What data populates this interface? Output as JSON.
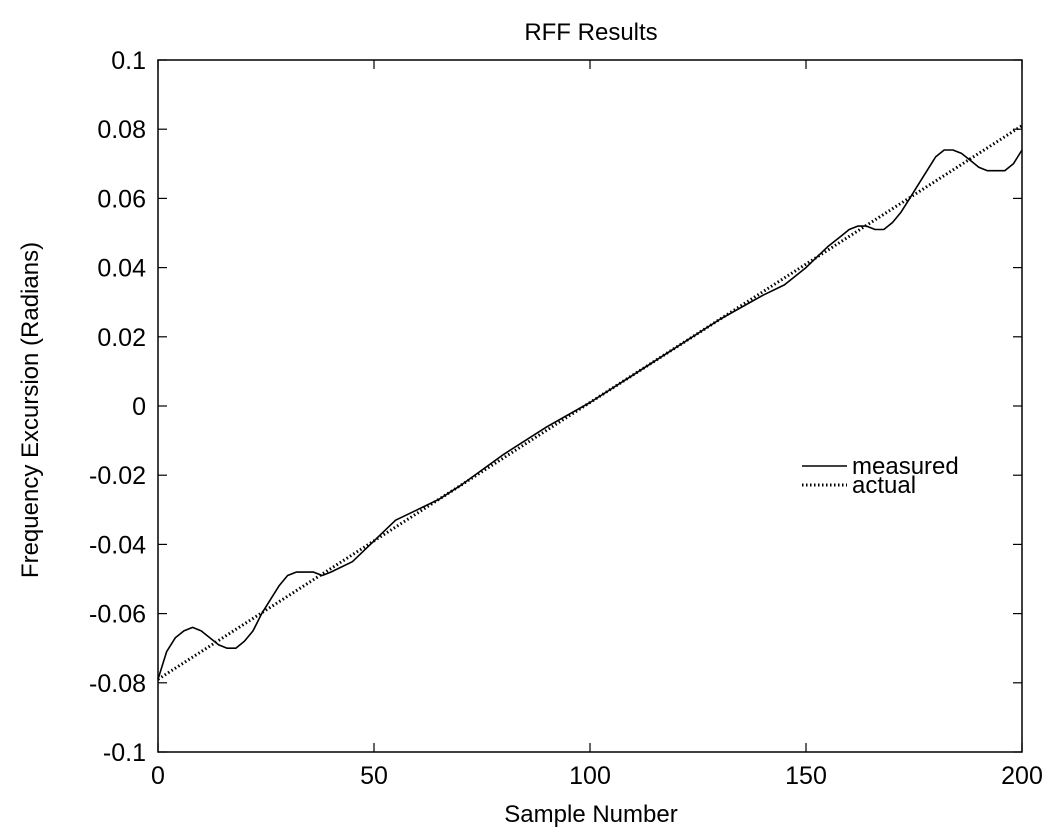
{
  "chart_data": {
    "type": "line",
    "title": "RFF Results",
    "xlabel": "Sample Number",
    "ylabel": "Frequency Excursion (Radians)",
    "xlim": [
      0,
      200
    ],
    "ylim": [
      -0.1,
      0.1
    ],
    "xticks": [
      0,
      50,
      100,
      150,
      200
    ],
    "xtick_labels": [
      "0",
      "50",
      "100",
      "150",
      "200"
    ],
    "yticks": [
      0.1,
      0.08,
      0.06,
      0.04,
      0.02,
      0,
      -0.02,
      -0.04,
      -0.06,
      -0.08,
      -0.1
    ],
    "ytick_labels": [
      "0.1",
      "0.08",
      "0.06",
      "0.04",
      "0.02",
      "0",
      "-0.02",
      "-0.04",
      "-0.06",
      "-0.08",
      "-0.1"
    ],
    "grid": false,
    "legend_position": "right",
    "series": [
      {
        "name": "measured",
        "style": "solid",
        "color": "#000000",
        "x": [
          0,
          2,
          4,
          6,
          8,
          10,
          12,
          14,
          16,
          18,
          20,
          22,
          24,
          26,
          28,
          30,
          32,
          34,
          36,
          38,
          40,
          45,
          50,
          55,
          60,
          65,
          70,
          80,
          90,
          100,
          110,
          120,
          130,
          140,
          145,
          150,
          155,
          158,
          160,
          162,
          164,
          166,
          168,
          170,
          172,
          174,
          176,
          178,
          180,
          182,
          184,
          186,
          188,
          190,
          192,
          194,
          196,
          198,
          200
        ],
        "y": [
          -0.079,
          -0.071,
          -0.067,
          -0.065,
          -0.064,
          -0.065,
          -0.067,
          -0.069,
          -0.07,
          -0.07,
          -0.068,
          -0.065,
          -0.06,
          -0.056,
          -0.052,
          -0.049,
          -0.048,
          -0.048,
          -0.048,
          -0.049,
          -0.048,
          -0.045,
          -0.039,
          -0.033,
          -0.03,
          -0.027,
          -0.023,
          -0.014,
          -0.006,
          0.001,
          0.009,
          0.017,
          0.025,
          0.032,
          0.035,
          0.04,
          0.046,
          0.049,
          0.051,
          0.052,
          0.052,
          0.051,
          0.051,
          0.053,
          0.056,
          0.06,
          0.064,
          0.068,
          0.072,
          0.074,
          0.074,
          0.073,
          0.071,
          0.069,
          0.068,
          0.068,
          0.068,
          0.07,
          0.074
        ]
      },
      {
        "name": "actual",
        "style": "dotted",
        "color": "#000000",
        "x": [
          0,
          200
        ],
        "y": [
          -0.079,
          0.081
        ]
      }
    ]
  }
}
